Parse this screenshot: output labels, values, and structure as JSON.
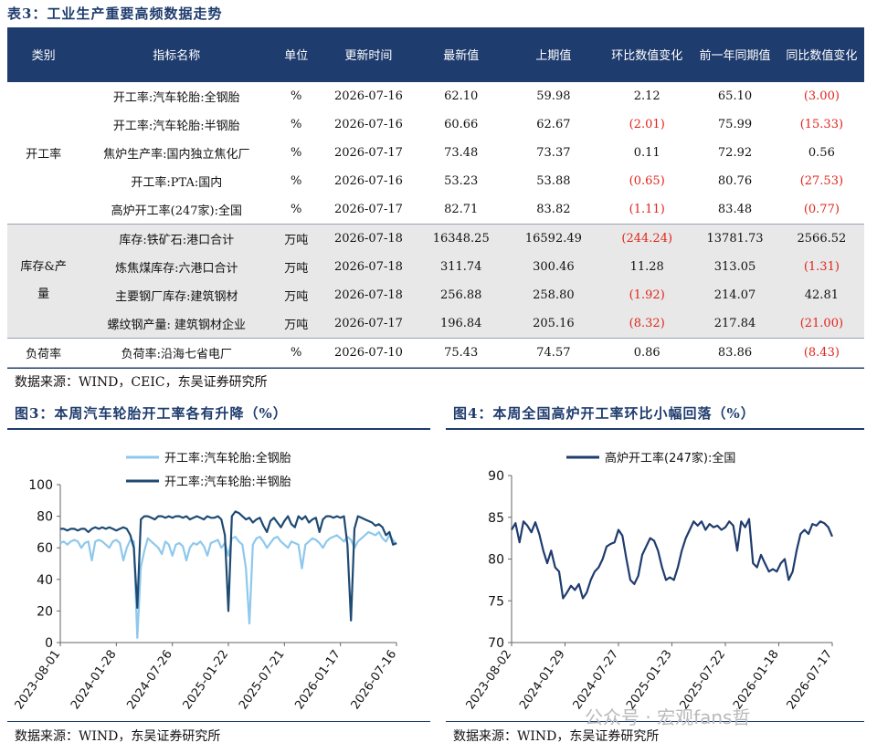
{
  "table": {
    "title": "表3：工业生产重要高频数据走势",
    "headers": [
      "类别",
      "指标名称",
      "单位",
      "更新时间",
      "最新值",
      "上期值",
      "环比数值变化",
      "前一年同期值",
      "同比数值变化"
    ],
    "groups": [
      {
        "category": "开工率",
        "rows": [
          {
            "name": "开工率:汽车轮胎:全钢胎",
            "unit": "%",
            "date": "2026-07-16",
            "latest": "62.10",
            "prev": "59.98",
            "mom": "2.12",
            "yoy_prev": "65.10",
            "yoy": "(3.00)"
          },
          {
            "name": "开工率:汽车轮胎:半钢胎",
            "unit": "%",
            "date": "2026-07-16",
            "latest": "60.66",
            "prev": "62.67",
            "mom": "(2.01)",
            "yoy_prev": "75.99",
            "yoy": "(15.33)"
          },
          {
            "name": "焦炉生产率:国内独立焦化厂",
            "unit": "%",
            "date": "2026-07-17",
            "latest": "73.48",
            "prev": "73.37",
            "mom": "0.11",
            "yoy_prev": "72.92",
            "yoy": "0.56"
          },
          {
            "name": "开工率:PTA:国内",
            "unit": "%",
            "date": "2026-07-16",
            "latest": "53.23",
            "prev": "53.88",
            "mom": "(0.65)",
            "yoy_prev": "80.76",
            "yoy": "(27.53)"
          },
          {
            "name": "高炉开工率(247家):全国",
            "unit": "%",
            "date": "2026-07-17",
            "latest": "82.71",
            "prev": "83.82",
            "mom": "(1.11)",
            "yoy_prev": "83.48",
            "yoy": "(0.77)"
          }
        ]
      },
      {
        "category": "库存&产量",
        "rows": [
          {
            "name": "库存:铁矿石:港口合计",
            "unit": "万吨",
            "date": "2026-07-18",
            "latest": "16348.25",
            "prev": "16592.49",
            "mom": "(244.24)",
            "yoy_prev": "13781.73",
            "yoy": "2566.52"
          },
          {
            "name": "炼焦煤库存:六港口合计",
            "unit": "万吨",
            "date": "2026-07-18",
            "latest": "311.74",
            "prev": "300.46",
            "mom": "11.28",
            "yoy_prev": "313.05",
            "yoy": "(1.31)"
          },
          {
            "name": "主要钢厂库存:建筑钢材",
            "unit": "万吨",
            "date": "2026-07-18",
            "latest": "256.88",
            "prev": "258.80",
            "mom": "(1.92)",
            "yoy_prev": "214.07",
            "yoy": "42.81"
          },
          {
            "name": "螺纹钢产量: 建筑钢材企业",
            "unit": "万吨",
            "date": "2026-07-17",
            "latest": "196.84",
            "prev": "205.16",
            "mom": "(8.32)",
            "yoy_prev": "217.84",
            "yoy": "(21.00)"
          }
        ]
      },
      {
        "category": "负荷率",
        "rows": [
          {
            "name": "负荷率:沿海七省电厂",
            "unit": "%",
            "date": "2026-07-10",
            "latest": "75.43",
            "prev": "74.57",
            "mom": "0.86",
            "yoy_prev": "83.86",
            "yoy": "(8.43)"
          }
        ]
      }
    ],
    "source": "数据来源：WIND，CEIC，东吴证券研究所"
  },
  "figure3": {
    "title": "图3：本周汽车轮胎开工率各有升降（%）",
    "source": "数据来源：WIND，东吴证券研究所"
  },
  "figure4": {
    "title": "图4：本周全国高炉开工率环比小幅回落（%）",
    "source": "数据来源：WIND，东吴证券研究所"
  },
  "watermark": "公众号 · 宏观fans哲",
  "chart_data": [
    {
      "type": "line",
      "ylim": [
        0,
        100
      ],
      "yticks": [
        0,
        20,
        40,
        60,
        80,
        100
      ],
      "xticks": [
        "2023-08-01",
        "2024-01-28",
        "2024-07-26",
        "2025-01-22",
        "2025-07-21",
        "2026-01-17",
        "2026-07-16"
      ],
      "series": [
        {
          "name": "开工率:汽车轮胎:全钢胎",
          "color": "#8ec8ec",
          "values": [
            63,
            64,
            62,
            64,
            65,
            64,
            60,
            63,
            64,
            52,
            64,
            65,
            64,
            62,
            60,
            64,
            65,
            63,
            52,
            60,
            65,
            64,
            3,
            48,
            58,
            66,
            64,
            62,
            60,
            56,
            64,
            62,
            55,
            62,
            63,
            61,
            52,
            60,
            63,
            62,
            64,
            61,
            55,
            63,
            64,
            65,
            60,
            63,
            55,
            66,
            67,
            64,
            62,
            47,
            12,
            62,
            66,
            67,
            64,
            60,
            63,
            66,
            67,
            64,
            62,
            60,
            64,
            63,
            62,
            47,
            62,
            64,
            66,
            65,
            63,
            60,
            64,
            66,
            67,
            68,
            66,
            64,
            67,
            65,
            60,
            64,
            66,
            68,
            70,
            69,
            68,
            70,
            66,
            64,
            68,
            65,
            62
          ]
        },
        {
          "name": "开工率:汽车轮胎:半钢胎",
          "color": "#1e4a73",
          "values": [
            72,
            72,
            71,
            72,
            72,
            71,
            72,
            72,
            70,
            72,
            73,
            72,
            73,
            72,
            73,
            72,
            71,
            72,
            73,
            72,
            68,
            60,
            22,
            78,
            80,
            80,
            79,
            78,
            80,
            80,
            79,
            80,
            79,
            80,
            80,
            79,
            80,
            78,
            79,
            80,
            79,
            78,
            80,
            79,
            79,
            80,
            78,
            68,
            20,
            80,
            83,
            82,
            80,
            78,
            79,
            76,
            78,
            79,
            74,
            70,
            77,
            79,
            76,
            73,
            77,
            80,
            75,
            73,
            80,
            78,
            80,
            76,
            78,
            79,
            70,
            78,
            80,
            80,
            79,
            80,
            79,
            80,
            62,
            14,
            72,
            80,
            79,
            78,
            77,
            76,
            74,
            75,
            73,
            68,
            70,
            62,
            63
          ]
        }
      ]
    },
    {
      "type": "line",
      "ylim": [
        70,
        90
      ],
      "yticks": [
        70,
        75,
        80,
        85,
        90
      ],
      "xticks": [
        "2023-08-02",
        "2024-01-29",
        "2024-07-27",
        "2025-01-23",
        "2025-07-22",
        "2026-01-18",
        "2026-07-17"
      ],
      "series": [
        {
          "name": "高炉开工率(247家):全国",
          "color": "#1f3c6e",
          "values": [
            83.5,
            84.3,
            82.0,
            84.5,
            84.0,
            83.2,
            84.4,
            83.0,
            81.0,
            79.5,
            81.0,
            79.0,
            78.5,
            75.3,
            76.0,
            76.8,
            76.3,
            77.0,
            75.3,
            76.0,
            77.5,
            78.5,
            79.0,
            80.0,
            81.5,
            81.8,
            82.0,
            83.5,
            82.8,
            80.0,
            77.5,
            77.0,
            78.0,
            80.5,
            81.5,
            82.5,
            82.2,
            81.0,
            79.0,
            77.5,
            77.8,
            77.5,
            79.0,
            81.0,
            82.5,
            83.5,
            84.5,
            84.0,
            84.5,
            83.5,
            84.2,
            83.8,
            84.0,
            83.5,
            83.8,
            84.5,
            84.0,
            81.0,
            84.5,
            83.8,
            84.8,
            79.5,
            79.0,
            80.5,
            79.5,
            78.5,
            78.8,
            78.5,
            79.5,
            80.0,
            77.5,
            78.5,
            81.0,
            83.0,
            83.5,
            83.0,
            84.2,
            84.0,
            84.5,
            84.3,
            83.8,
            82.7
          ]
        }
      ]
    }
  ]
}
